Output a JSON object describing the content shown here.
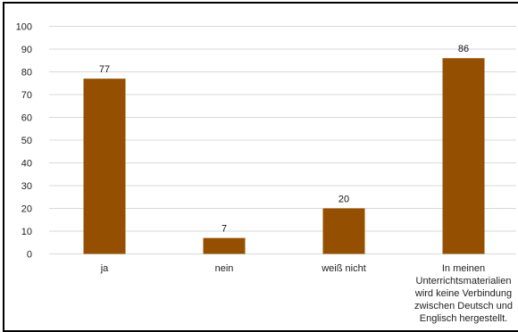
{
  "chart_data": {
    "type": "bar",
    "categories": [
      [
        "ja"
      ],
      [
        "nein"
      ],
      [
        "weiß nicht"
      ],
      [
        "In meinen",
        "Unterrichtsmaterialien",
        "wird keine Verbindung",
        "zwischen Deutsch und",
        "Englisch hergestellt."
      ]
    ],
    "values": [
      77,
      7,
      20,
      86
    ],
    "data_labels": [
      "77",
      "7",
      "20",
      "86"
    ],
    "ylim": [
      0,
      100
    ],
    "yticks": [
      0,
      10,
      20,
      30,
      40,
      50,
      60,
      70,
      80,
      90,
      100
    ],
    "grid": true,
    "legend": "none",
    "bar_color": "#954f00",
    "grid_color": "#d9d9d9",
    "title": "",
    "xlabel": "",
    "ylabel": ""
  }
}
